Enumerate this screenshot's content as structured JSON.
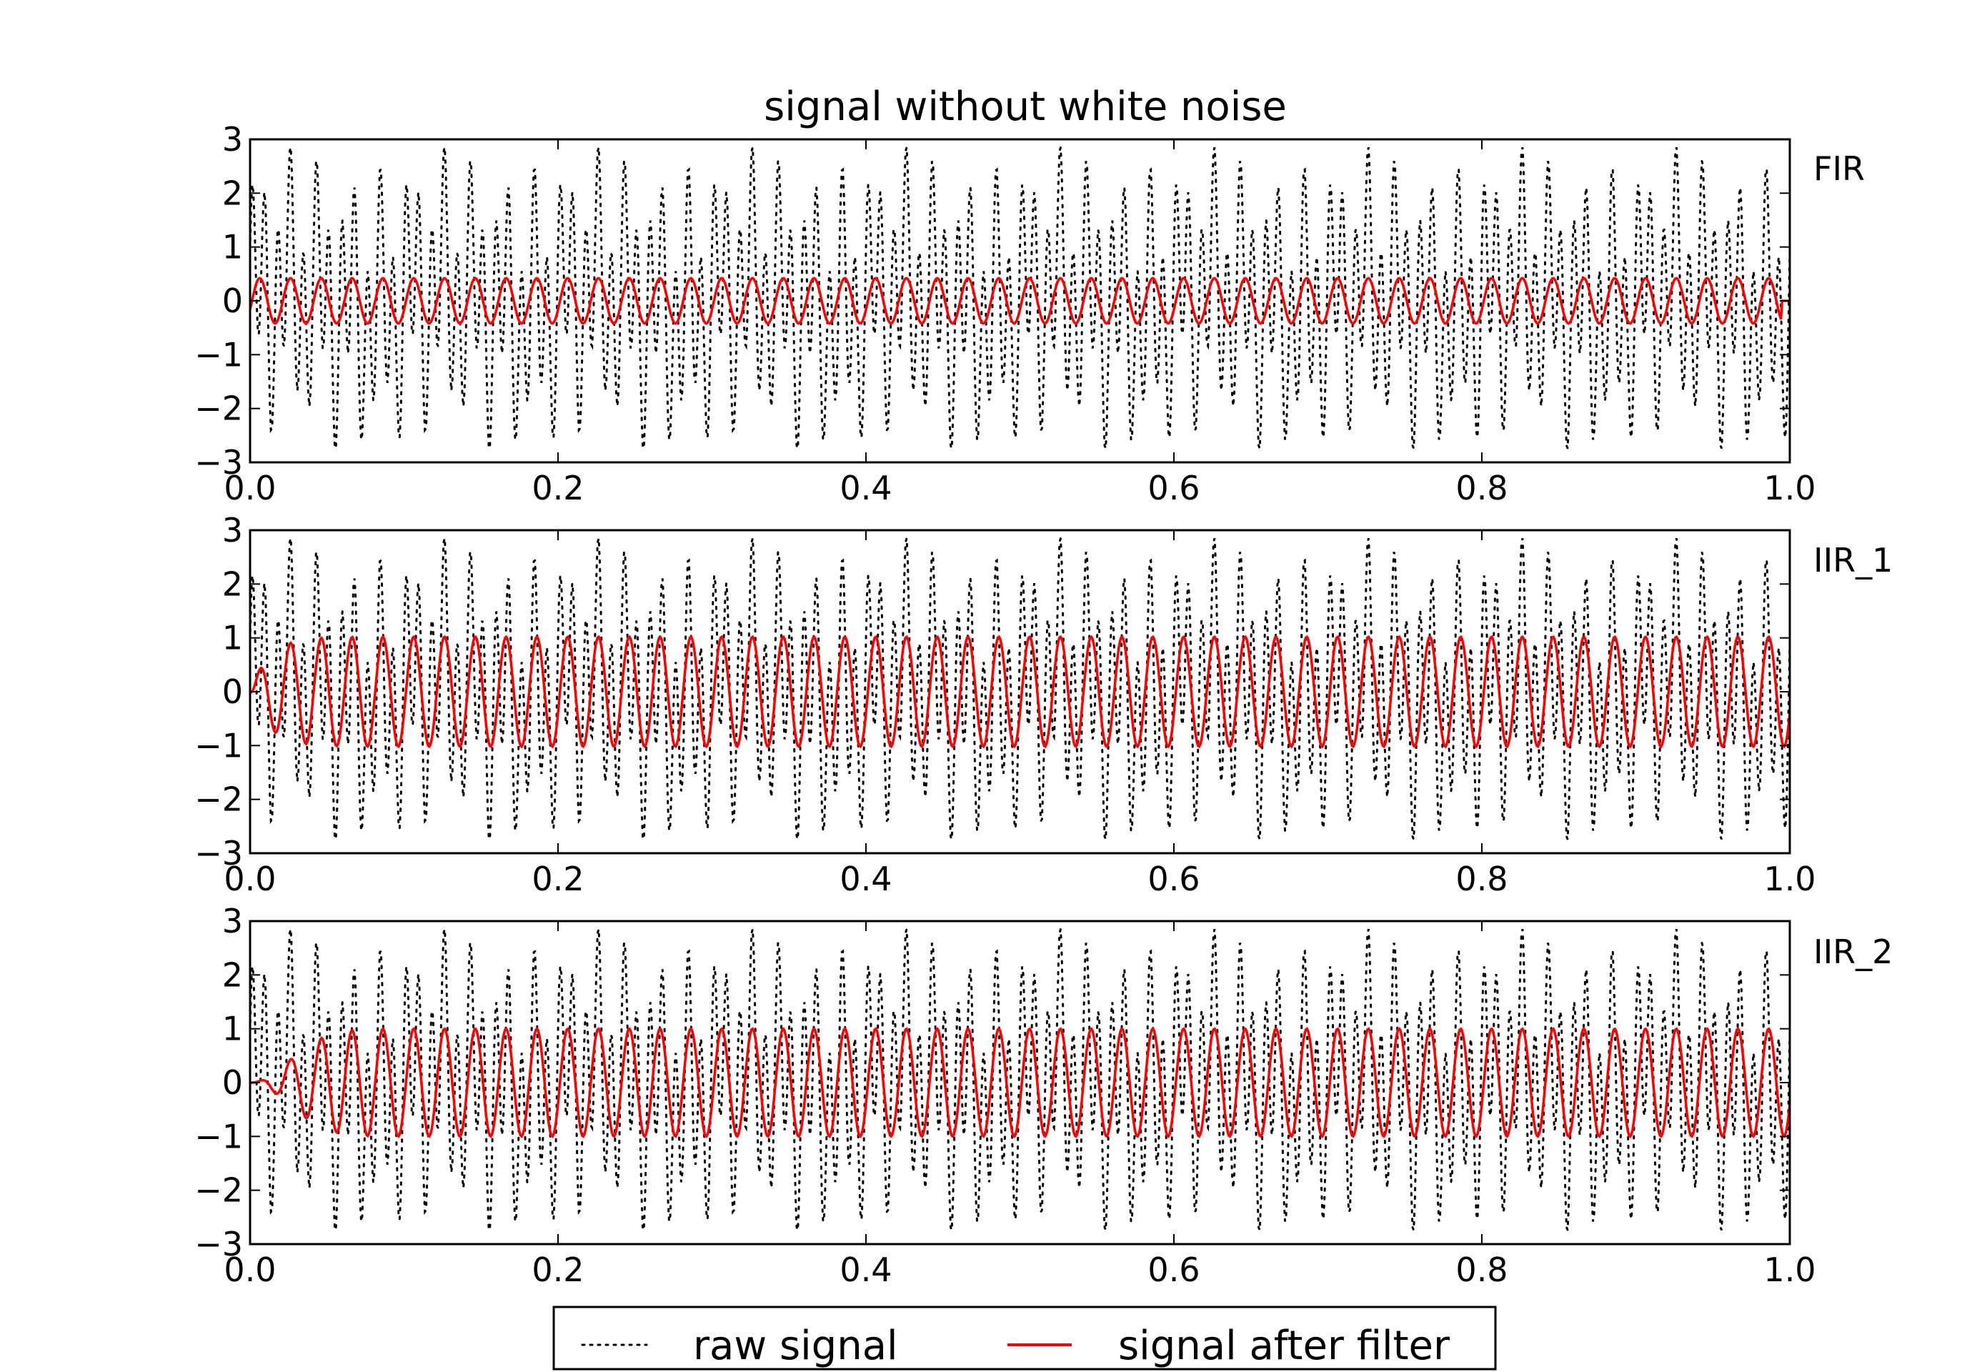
{
  "chart_data": {
    "type": "line",
    "title": "signal without white noise",
    "xlim": [
      0.0,
      1.0
    ],
    "ylim": [
      -3,
      3
    ],
    "xticks": [
      "0.0",
      "0.2",
      "0.4",
      "0.6",
      "0.8",
      "1.0"
    ],
    "yticks": [
      "−3",
      "−2",
      "−1",
      "0",
      "1",
      "2",
      "3"
    ],
    "grid": false,
    "legend": {
      "placement": "bottom-center",
      "entries": [
        "raw signal",
        "signal after filter"
      ]
    },
    "raw_signal": {
      "name": "raw signal",
      "color": "#000000",
      "style": "dotted",
      "formula": "sin(2*pi*50*t) + 2*cos(2*pi*150*t + 1.0)*0.9 (approx.)",
      "period": 0.1,
      "range": [
        -2.8,
        2.8
      ]
    },
    "panels": [
      {
        "label": "FIR",
        "filtered": {
          "name": "signal after filter",
          "color": "#ff0000",
          "frequency": 50,
          "amplitude": 0.42,
          "transient": "none"
        }
      },
      {
        "label": "IIR_1",
        "filtered": {
          "name": "signal after filter",
          "color": "#ff0000",
          "frequency": 50,
          "amplitude": 1.02,
          "transient": "short rise over first 0.05"
        }
      },
      {
        "label": "IIR_2",
        "filtered": {
          "name": "signal after filter",
          "color": "#ff0000",
          "frequency": 50,
          "amplitude": 1.0,
          "transient": "slow rise over first 0.1"
        }
      }
    ]
  }
}
